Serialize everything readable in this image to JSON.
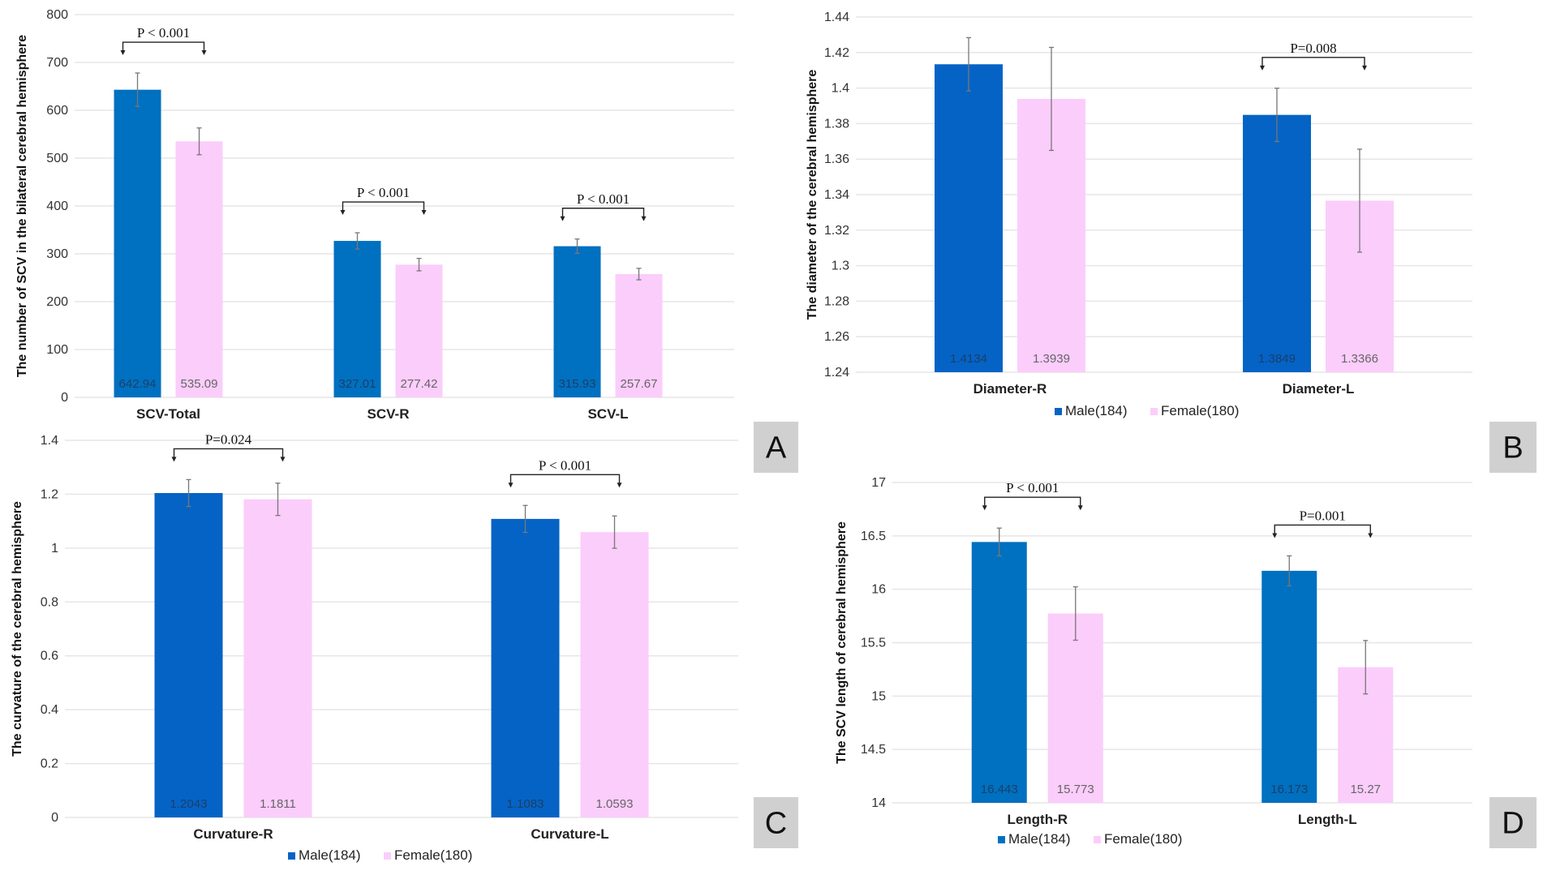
{
  "colors": {
    "male": "#0070C0",
    "male_alt": "#0563C6",
    "female": "#FBCDFB",
    "grid": "#E6E6E6",
    "panel_box": "#D0D0D0"
  },
  "legend": {
    "male": "Male(184)",
    "female": "Female(180)"
  },
  "chart_data": [
    {
      "panel": "A",
      "type": "bar",
      "ylabel": "The  number of SCV in the bilateral cerebral hemisphere",
      "ylim": [
        0,
        800
      ],
      "ystep": 100,
      "yticks": [
        "0",
        "100",
        "200",
        "300",
        "400",
        "500",
        "600",
        "700",
        "800"
      ],
      "categories": [
        "SCV-Total",
        "SCV-R",
        "SCV-L"
      ],
      "series": [
        {
          "name": "Male(184)",
          "values": [
            642.94,
            327.01,
            315.93
          ],
          "labels": [
            "642.94",
            "327.01",
            "315.93"
          ],
          "errors": [
            35,
            17,
            15
          ]
        },
        {
          "name": "Female(180)",
          "values": [
            535.09,
            277.42,
            257.67
          ],
          "labels": [
            "535.09",
            "277.42",
            "257.67"
          ],
          "errors": [
            28,
            13,
            12
          ]
        }
      ],
      "annotations": [
        {
          "category": 0,
          "text": "P < 0.001"
        },
        {
          "category": 1,
          "text": "P < 0.001"
        },
        {
          "category": 2,
          "text": "P < 0.001"
        }
      ],
      "legend": false,
      "grid": true
    },
    {
      "panel": "B",
      "type": "bar",
      "ylabel": "The diameter  of the cerebral hemisphere",
      "ylim": [
        1.24,
        1.44
      ],
      "ystep": 0.02,
      "yticks": [
        "1.24",
        "1.26",
        "1.28",
        "1.3",
        "1.32",
        "1.34",
        "1.36",
        "1.38",
        "1.4",
        "1.42",
        "1.44"
      ],
      "categories": [
        "Diameter-R",
        "Diameter-L"
      ],
      "series": [
        {
          "name": "Male(184)",
          "values": [
            1.4134,
            1.3849
          ],
          "labels": [
            "1.4134",
            "1.3849"
          ],
          "errors": [
            0.015,
            0.015
          ]
        },
        {
          "name": "Female(180)",
          "values": [
            1.3939,
            1.3366
          ],
          "labels": [
            "1.3939",
            "1.3366"
          ],
          "errors": [
            0.029,
            0.029
          ]
        }
      ],
      "annotations": [
        {
          "category": 1,
          "text": "P=0.008"
        }
      ],
      "legend": "bottom",
      "grid": true
    },
    {
      "panel": "C",
      "type": "bar",
      "ylabel": "The curvature of the cerebral hemisphere",
      "ylim": [
        0,
        1.4
      ],
      "ystep": 0.2,
      "yticks": [
        "0",
        "0.2",
        "0.4",
        "0.6",
        "0.8",
        "1",
        "1.2",
        "1.4"
      ],
      "categories": [
        "Curvature-R",
        "Curvature-L"
      ],
      "series": [
        {
          "name": "Male(184)",
          "values": [
            1.2043,
            1.1083
          ],
          "labels": [
            "1.2043",
            "1.1083"
          ],
          "errors": [
            0.05,
            0.05
          ]
        },
        {
          "name": "Female(180)",
          "values": [
            1.1811,
            1.0593
          ],
          "labels": [
            "1.1811",
            "1.0593"
          ],
          "errors": [
            0.06,
            0.06
          ]
        }
      ],
      "annotations": [
        {
          "category": 0,
          "text": "P=0.024"
        },
        {
          "category": 1,
          "text": "P < 0.001"
        }
      ],
      "legend": "bottom",
      "grid": true
    },
    {
      "panel": "D",
      "type": "bar",
      "ylabel": "The SCV length of  cerebral hemisphere",
      "ylim": [
        14,
        17
      ],
      "ystep": 0.5,
      "yticks": [
        "14",
        "14.5",
        "15",
        "15.5",
        "16",
        "16.5",
        "17"
      ],
      "categories": [
        "Length-R",
        "Length-L"
      ],
      "series": [
        {
          "name": "Male(184)",
          "values": [
            16.443,
            16.173
          ],
          "labels": [
            "16.443",
            "16.173"
          ],
          "errors": [
            0.13,
            0.14
          ]
        },
        {
          "name": "Female(180)",
          "values": [
            15.773,
            15.27
          ],
          "labels": [
            "15.773",
            "15.27"
          ],
          "errors": [
            0.25,
            0.25
          ]
        }
      ],
      "annotations": [
        {
          "category": 0,
          "text": "P < 0.001"
        },
        {
          "category": 1,
          "text": "P=0.001"
        }
      ],
      "legend": "bottom",
      "grid": true
    }
  ]
}
